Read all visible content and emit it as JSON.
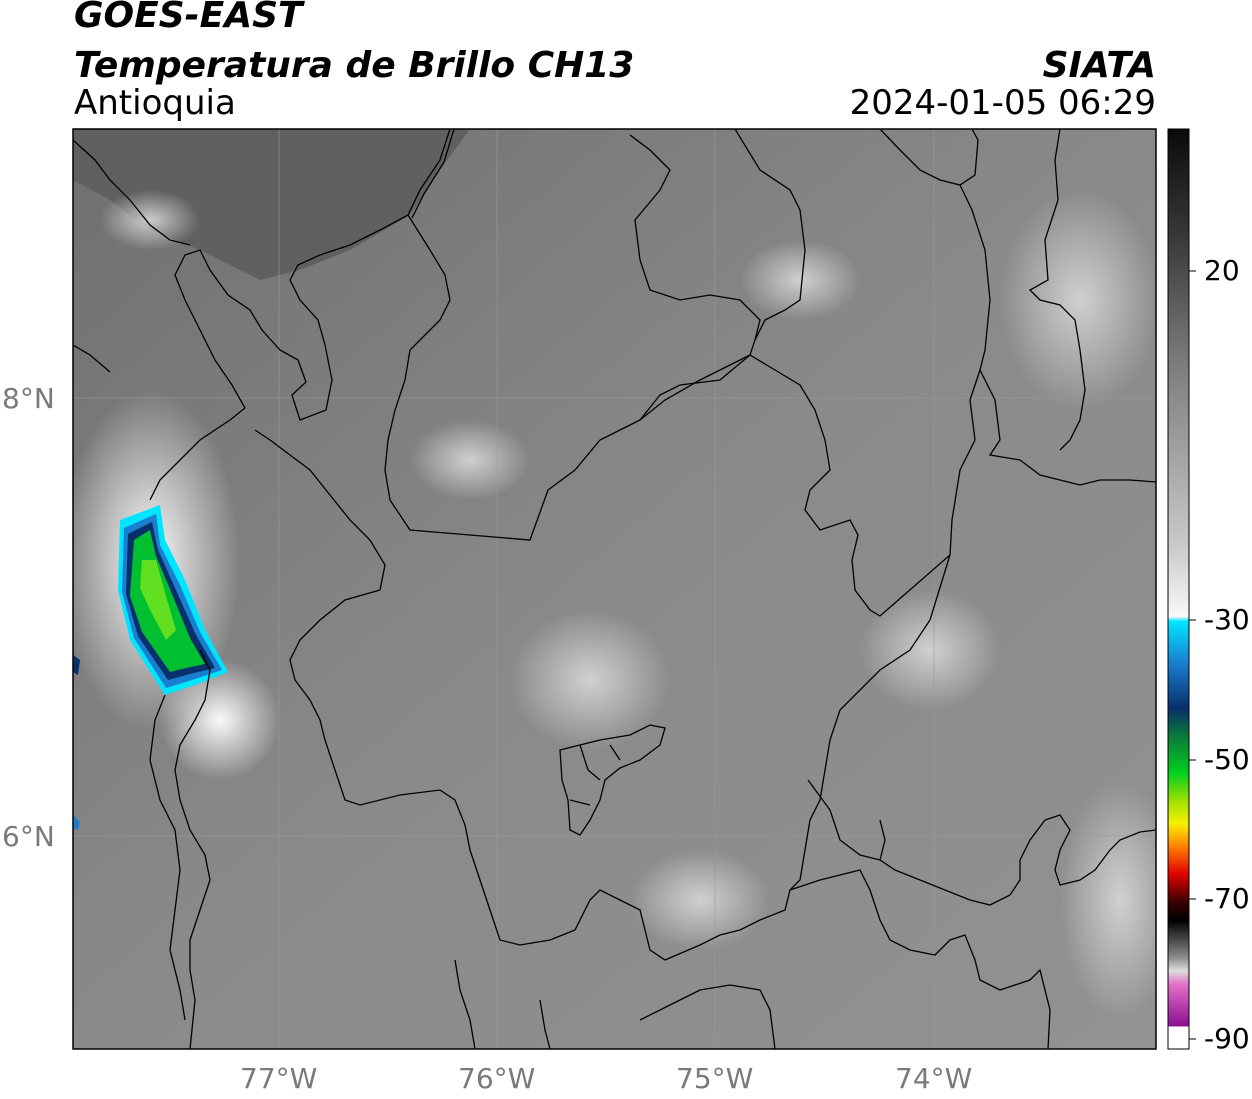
{
  "header": {
    "satellite": "GOES-EAST",
    "product": "Temperatura de Brillo CH13",
    "region": "Antioquia",
    "brand": "SIATA",
    "timestamp": "2024-01-05 06:29"
  },
  "map": {
    "lon_range": [
      -77.95,
      -73.0
    ],
    "lat_range": [
      5.05,
      9.25
    ],
    "lon_ticks": [
      {
        "value": -77,
        "label": "77°W"
      },
      {
        "value": -76,
        "label": "76°W"
      },
      {
        "value": -75,
        "label": "75°W"
      },
      {
        "value": -74,
        "label": "74°W"
      }
    ],
    "lat_ticks": [
      {
        "value": 8,
        "label": "8°N"
      },
      {
        "value": 6,
        "label": "6°N"
      }
    ],
    "grid": true
  },
  "colorbar": {
    "range": [
      -90,
      30
    ],
    "tick_labels": [
      {
        "value": 20,
        "label": "20"
      },
      {
        "value": -30,
        "label": "-30"
      },
      {
        "value": -50,
        "label": "-50"
      },
      {
        "value": -70,
        "label": "-70"
      },
      {
        "value": -90,
        "label": "-90"
      }
    ],
    "colors": {
      "warm_top": "#111111",
      "grey_mid": "#8a8a8a",
      "white": "#f4f4f4",
      "cyan": "#00e5ff",
      "blue": "#08306b",
      "green": "#00d020",
      "yellow": "#f7f000",
      "orange": "#ff8000",
      "red": "#e00000",
      "dark_red": "#3a0000",
      "black": "#000000",
      "pink": "#e070c8",
      "purple": "#8a1090"
    }
  }
}
